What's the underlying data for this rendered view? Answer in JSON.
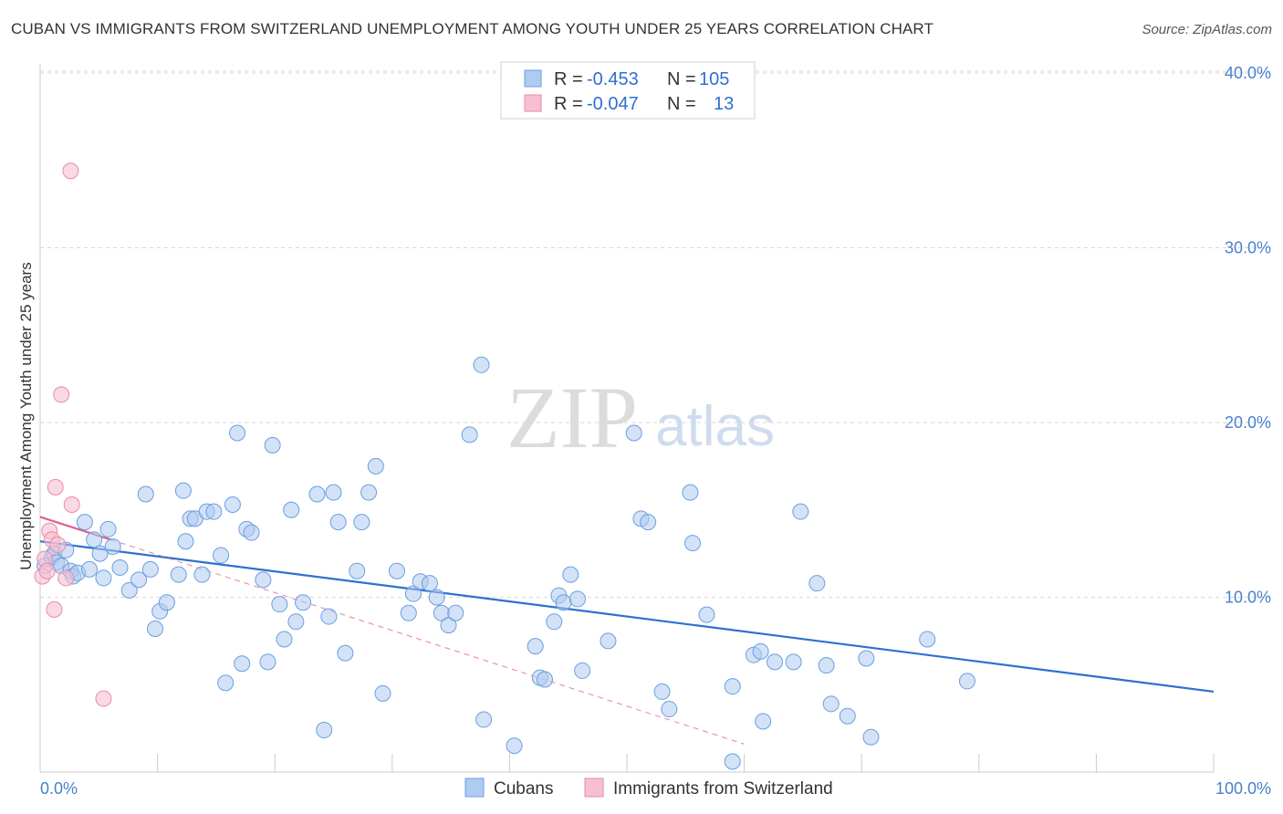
{
  "header": {
    "title": "CUBAN VS IMMIGRANTS FROM SWITZERLAND UNEMPLOYMENT AMONG YOUTH UNDER 25 YEARS CORRELATION CHART",
    "source": "Source: ZipAtlas.com"
  },
  "watermark": {
    "part1": "ZIP",
    "part2": "atlas"
  },
  "colors": {
    "cubans_fill": "#aecbf0",
    "cubans_stroke": "#6a9fe0",
    "cubans_line": "#2f6fd0",
    "swiss_fill": "#f7c0d0",
    "swiss_stroke": "#e88aaa",
    "swiss_line": "#e0608a",
    "tick_text": "#4a7fcf",
    "grid": "#d9d9d9"
  },
  "legend": {
    "r_label": "R =",
    "n_label": "N =",
    "rows": [
      {
        "r": "-0.453",
        "n": "105"
      },
      {
        "r": "-0.047",
        "n": "13"
      }
    ]
  },
  "bottom_legend": [
    "Cubans",
    "Immigrants from Switzerland"
  ],
  "chart_data": {
    "type": "scatter",
    "title": "CUBAN VS IMMIGRANTS FROM SWITZERLAND UNEMPLOYMENT AMONG YOUTH UNDER 25 YEARS CORRELATION CHART",
    "xlabel": "",
    "ylabel": "Unemployment Among Youth under 25 years",
    "xlim": [
      0,
      100
    ],
    "ylim": [
      0,
      40
    ],
    "x_tick_labels": [
      "0.0%",
      "100.0%"
    ],
    "y_ticks": [
      10,
      20,
      30,
      40
    ],
    "y_tick_labels": [
      "10.0%",
      "20.0%",
      "30.0%",
      "40.0%"
    ],
    "grid": "horizontal dashed",
    "legend_position": "top-center",
    "series": [
      {
        "name": "Cubans",
        "r": -0.453,
        "n": 105,
        "trend": {
          "x": [
            0,
            100
          ],
          "y": [
            13.2,
            4.6
          ]
        },
        "points": [
          [
            0.4,
            11.8
          ],
          [
            1.0,
            12.3
          ],
          [
            1.2,
            12.5
          ],
          [
            1.4,
            12.0
          ],
          [
            1.8,
            11.8
          ],
          [
            2.2,
            12.7
          ],
          [
            2.6,
            11.5
          ],
          [
            2.8,
            11.2
          ],
          [
            3.2,
            11.4
          ],
          [
            3.8,
            14.3
          ],
          [
            4.2,
            11.6
          ],
          [
            4.6,
            13.3
          ],
          [
            5.1,
            12.5
          ],
          [
            5.4,
            11.1
          ],
          [
            5.8,
            13.9
          ],
          [
            6.2,
            12.9
          ],
          [
            6.8,
            11.7
          ],
          [
            7.6,
            10.4
          ],
          [
            8.4,
            11.0
          ],
          [
            9.0,
            15.9
          ],
          [
            9.4,
            11.6
          ],
          [
            9.8,
            8.2
          ],
          [
            10.2,
            9.2
          ],
          [
            10.8,
            9.7
          ],
          [
            11.8,
            11.3
          ],
          [
            12.2,
            16.1
          ],
          [
            12.4,
            13.2
          ],
          [
            12.8,
            14.5
          ],
          [
            13.2,
            14.5
          ],
          [
            13.8,
            11.3
          ],
          [
            14.2,
            14.9
          ],
          [
            14.8,
            14.9
          ],
          [
            15.4,
            12.4
          ],
          [
            15.8,
            5.1
          ],
          [
            16.4,
            15.3
          ],
          [
            16.8,
            19.4
          ],
          [
            17.2,
            6.2
          ],
          [
            17.6,
            13.9
          ],
          [
            18.0,
            13.7
          ],
          [
            19.0,
            11.0
          ],
          [
            19.4,
            6.3
          ],
          [
            19.8,
            18.7
          ],
          [
            20.4,
            9.6
          ],
          [
            20.8,
            7.6
          ],
          [
            21.4,
            15.0
          ],
          [
            21.8,
            8.6
          ],
          [
            22.4,
            9.7
          ],
          [
            23.6,
            15.9
          ],
          [
            24.2,
            2.4
          ],
          [
            24.6,
            8.9
          ],
          [
            25.0,
            16.0
          ],
          [
            25.4,
            14.3
          ],
          [
            26.0,
            6.8
          ],
          [
            27.0,
            11.5
          ],
          [
            27.4,
            14.3
          ],
          [
            28.0,
            16.0
          ],
          [
            28.6,
            17.5
          ],
          [
            29.2,
            4.5
          ],
          [
            30.4,
            11.5
          ],
          [
            31.4,
            9.1
          ],
          [
            31.8,
            10.2
          ],
          [
            32.4,
            10.9
          ],
          [
            33.2,
            10.8
          ],
          [
            33.8,
            10.0
          ],
          [
            34.2,
            9.1
          ],
          [
            34.8,
            8.4
          ],
          [
            35.4,
            9.1
          ],
          [
            36.6,
            19.3
          ],
          [
            37.6,
            23.3
          ],
          [
            37.8,
            3.0
          ],
          [
            40.4,
            1.5
          ],
          [
            42.2,
            7.2
          ],
          [
            42.6,
            5.4
          ],
          [
            43.0,
            5.3
          ],
          [
            43.8,
            8.6
          ],
          [
            44.2,
            10.1
          ],
          [
            44.6,
            9.7
          ],
          [
            45.2,
            11.3
          ],
          [
            45.8,
            9.9
          ],
          [
            46.2,
            5.8
          ],
          [
            48.4,
            7.5
          ],
          [
            50.6,
            19.4
          ],
          [
            51.2,
            14.5
          ],
          [
            51.8,
            14.3
          ],
          [
            53.0,
            4.6
          ],
          [
            53.6,
            3.6
          ],
          [
            55.4,
            16.0
          ],
          [
            55.6,
            13.1
          ],
          [
            56.8,
            9.0
          ],
          [
            59.0,
            4.9
          ],
          [
            59.0,
            0.6
          ],
          [
            60.8,
            6.7
          ],
          [
            61.4,
            6.9
          ],
          [
            61.6,
            2.9
          ],
          [
            62.6,
            6.3
          ],
          [
            64.2,
            6.3
          ],
          [
            64.8,
            14.9
          ],
          [
            66.2,
            10.8
          ],
          [
            67.0,
            6.1
          ],
          [
            67.4,
            3.9
          ],
          [
            68.8,
            3.2
          ],
          [
            70.4,
            6.5
          ],
          [
            70.8,
            2.0
          ],
          [
            75.6,
            7.6
          ],
          [
            79.0,
            5.2
          ]
        ]
      },
      {
        "name": "Immigrants from Switzerland",
        "r": -0.047,
        "n": 13,
        "trend": {
          "x": [
            0,
            6.0
          ],
          "y": [
            14.6,
            13.3
          ]
        },
        "points": [
          [
            0.2,
            11.2
          ],
          [
            0.4,
            12.2
          ],
          [
            0.6,
            11.5
          ],
          [
            0.8,
            13.8
          ],
          [
            1.0,
            13.3
          ],
          [
            1.2,
            9.3
          ],
          [
            1.3,
            16.3
          ],
          [
            1.5,
            13.0
          ],
          [
            1.8,
            21.6
          ],
          [
            2.2,
            11.1
          ],
          [
            2.6,
            34.4
          ],
          [
            2.7,
            15.3
          ],
          [
            5.4,
            4.2
          ]
        ]
      }
    ]
  }
}
